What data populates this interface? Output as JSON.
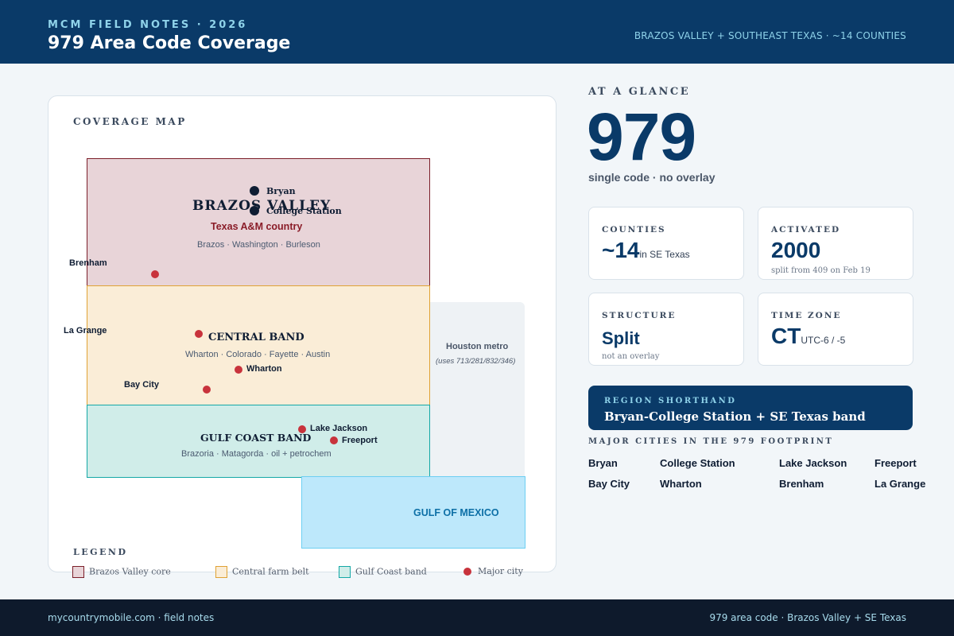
{
  "header": {
    "kicker": "MCM FIELD NOTES · 2026",
    "title": "979 Area Code Coverage",
    "right": "BRAZOS VALLEY + SOUTHEAST TEXAS · ~14 COUNTIES"
  },
  "map": {
    "title": "COVERAGE MAP",
    "regions": {
      "brazos": {
        "name": "BRAZOS VALLEY",
        "tagline": "Texas A&M country",
        "counties": "Brazos · Washington · Burleson"
      },
      "central": {
        "name": "CENTRAL BAND",
        "counties": "Wharton · Colorado · Fayette · Austin"
      },
      "gulf": {
        "name": "GULF COAST BAND",
        "counties": "Brazoria · Matagorda · oil + petrochem"
      },
      "houston": {
        "name": "Houston metro",
        "note": "(uses 713/281/832/346)"
      },
      "gulf_of_mexico": {
        "name": "GULF OF MEXICO"
      }
    },
    "cities": {
      "bryan": "Bryan",
      "college_station": "College Station",
      "brenham": "Brenham",
      "la_grange": "La Grange",
      "wharton": "Wharton",
      "bay_city": "Bay City",
      "lake_jackson": "Lake Jackson",
      "freeport": "Freeport"
    },
    "legend": {
      "title": "LEGEND",
      "items": [
        {
          "label": "Brazos Valley core",
          "color": "#7c1f2a"
        },
        {
          "label": "Central farm belt",
          "color": "#e0a234"
        },
        {
          "label": "Gulf Coast band",
          "color": "#14a8a6"
        },
        {
          "label": "Major city",
          "color": "#c8333c"
        }
      ]
    }
  },
  "glance": {
    "kicker": "AT A GLANCE",
    "code": "979",
    "subtitle": "single code · no overlay",
    "stats": {
      "counties": {
        "label": "COUNTIES",
        "value": "~14",
        "unit": "in SE Texas"
      },
      "activated": {
        "label": "ACTIVATED",
        "value": "2000",
        "note": "split from 409 on Feb 19"
      },
      "structure": {
        "label": "STRUCTURE",
        "value": "Split",
        "note": "not an overlay"
      },
      "timezone": {
        "label": "TIME ZONE",
        "value": "CT",
        "unit": "UTC-6 / -5"
      }
    },
    "shorthand": {
      "label": "REGION SHORTHAND",
      "value": "Bryan-College Station + SE Texas band"
    },
    "cities": {
      "title": "MAJOR CITIES IN THE 979 FOOTPRINT",
      "list": [
        "Bryan",
        "College Station",
        "Lake Jackson",
        "Freeport",
        "Bay City",
        "Wharton",
        "Brenham",
        "La Grange"
      ]
    }
  },
  "footer": {
    "left": "mycountrymobile.com · field notes",
    "right": "979 area code · Brazos Valley + SE Texas"
  },
  "colors": {
    "header_bg": "#0a3a68",
    "footer_bg": "#0e1a2c",
    "accent": "#8fd3ea",
    "city_dot": "#c8333c"
  }
}
